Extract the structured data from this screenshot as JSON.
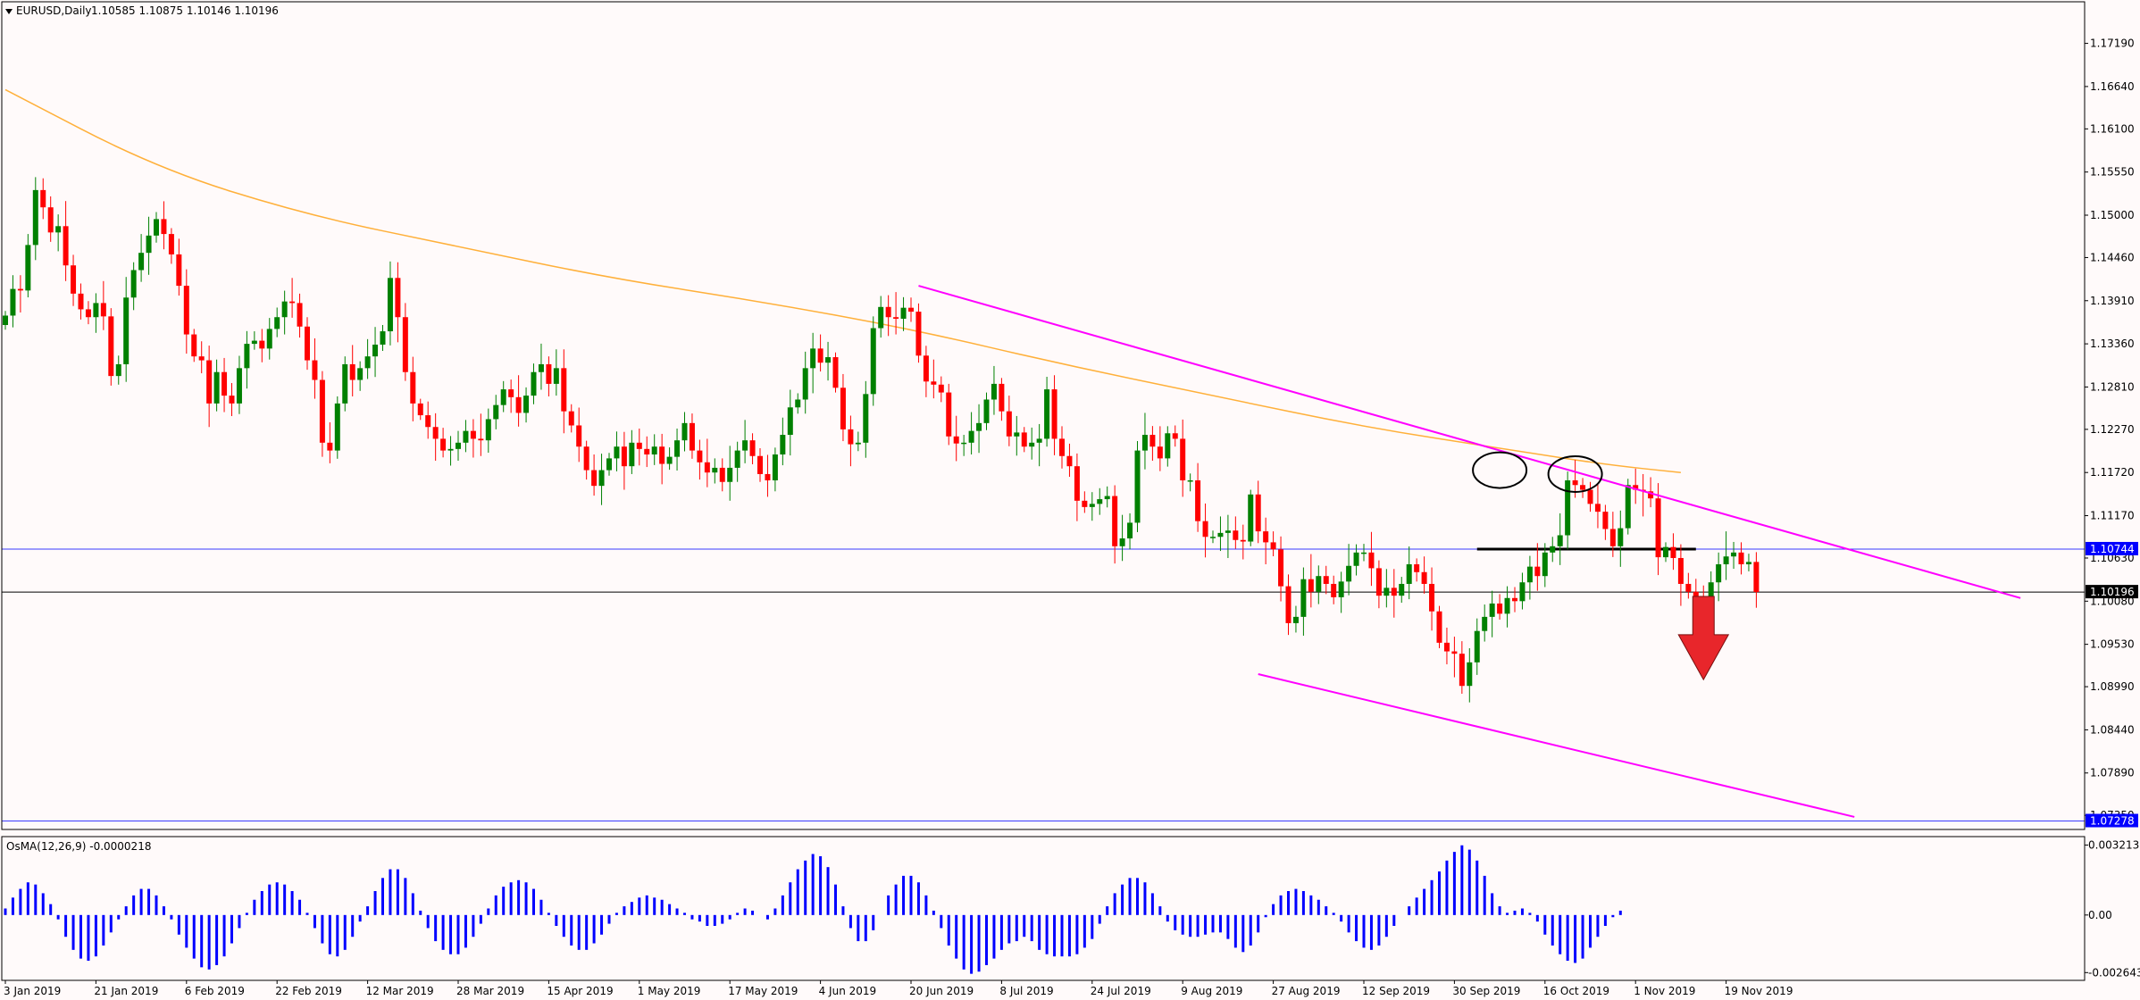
{
  "chart_data": {
    "type": "candlestick",
    "header": {
      "symbol_label": "EURUSD,Daily",
      "quote": "1.10585 1.10875 1.10146 1.10196"
    },
    "colors": {
      "background": "#fffafa",
      "bull": "#008000",
      "bear": "#ff0000",
      "ma": "#ffb03a",
      "trendline": "#ff00ff",
      "level_line": "#3a3aff",
      "osma": "#0000ff",
      "arrow": "#e8262b"
    },
    "price_axis": {
      "ylim": [
        1.0717,
        1.1772
      ],
      "ticks": [
        "1.17190",
        "1.16640",
        "1.16100",
        "1.15550",
        "1.15000",
        "1.14460",
        "1.13910",
        "1.13360",
        "1.12810",
        "1.12270",
        "1.11720",
        "1.11170",
        "1.10630",
        "1.10080",
        "1.09530",
        "1.08990",
        "1.08440",
        "1.07890",
        "1.07350"
      ],
      "markers": [
        {
          "label": "1.10744",
          "value": 1.10744,
          "bg": "#0000ff"
        },
        {
          "label": "1.10196",
          "value": 1.10196,
          "bg": "#000000"
        },
        {
          "label": "1.07278",
          "value": 1.07278,
          "bg": "#0000ff"
        }
      ]
    },
    "time_axis": {
      "labels": [
        {
          "text": "3 Jan 2019",
          "bar": 0
        },
        {
          "text": "21 Jan 2019",
          "bar": 12
        },
        {
          "text": "6 Feb 2019",
          "bar": 24
        },
        {
          "text": "22 Feb 2019",
          "bar": 36
        },
        {
          "text": "12 Mar 2019",
          "bar": 48
        },
        {
          "text": "28 Mar 2019",
          "bar": 60
        },
        {
          "text": "15 Apr 2019",
          "bar": 72
        },
        {
          "text": "1 May 2019",
          "bar": 84
        },
        {
          "text": "17 May 2019",
          "bar": 96
        },
        {
          "text": "4 Jun 2019",
          "bar": 108
        },
        {
          "text": "20 Jun 2019",
          "bar": 120
        },
        {
          "text": "8 Jul 2019",
          "bar": 132
        },
        {
          "text": "24 Jul 2019",
          "bar": 144
        },
        {
          "text": "9 Aug 2019",
          "bar": 156
        },
        {
          "text": "27 Aug 2019",
          "bar": 168
        },
        {
          "text": "12 Sep 2019",
          "bar": 180
        },
        {
          "text": "30 Sep 2019",
          "bar": 192
        },
        {
          "text": "16 Oct 2019",
          "bar": 204
        },
        {
          "text": "1 Nov 2019",
          "bar": 216
        },
        {
          "text": "19 Nov 2019",
          "bar": 228
        }
      ]
    },
    "closes": [
      1.1372,
      1.1406,
      1.1404,
      1.1462,
      1.1532,
      1.151,
      1.1478,
      1.1486,
      1.1436,
      1.14,
      1.138,
      1.137,
      1.1388,
      1.1371,
      1.1295,
      1.131,
      1.1395,
      1.143,
      1.1452,
      1.1474,
      1.1495,
      1.1476,
      1.145,
      1.141,
      1.1348,
      1.132,
      1.1315,
      1.126,
      1.13,
      1.127,
      1.126,
      1.1305,
      1.1336,
      1.134,
      1.133,
      1.1355,
      1.137,
      1.139,
      1.1388,
      1.1358,
      1.1315,
      1.129,
      1.121,
      1.12,
      1.126,
      1.131,
      1.129,
      1.1305,
      1.132,
      1.1335,
      1.1352,
      1.142,
      1.137,
      1.13,
      1.126,
      1.1245,
      1.123,
      1.1215,
      1.12,
      1.1202,
      1.121,
      1.1225,
      1.1215,
      1.1213,
      1.124,
      1.1258,
      1.1278,
      1.1268,
      1.1248,
      1.127,
      1.13,
      1.131,
      1.1285,
      1.1305,
      1.125,
      1.1232,
      1.1205,
      1.1175,
      1.1155,
      1.1175,
      1.119,
      1.1205,
      1.118,
      1.121,
      1.1202,
      1.1195,
      1.1205,
      1.1183,
      1.1192,
      1.1213,
      1.1235,
      1.12,
      1.1185,
      1.1172,
      1.1178,
      1.116,
      1.1178,
      1.12,
      1.1213,
      1.1193,
      1.117,
      1.1162,
      1.1195,
      1.122,
      1.1255,
      1.1265,
      1.1305,
      1.133,
      1.1312,
      1.1319,
      1.128,
      1.1227,
      1.1208,
      1.121,
      1.1272,
      1.1356,
      1.1383,
      1.137,
      1.1368,
      1.1382,
      1.1377,
      1.1321,
      1.1288,
      1.1284,
      1.1274,
      1.1218,
      1.1209,
      1.121,
      1.1225,
      1.1235,
      1.1265,
      1.1285,
      1.125,
      1.1218,
      1.1223,
      1.1205,
      1.121,
      1.1215,
      1.1278,
      1.1215,
      1.1193,
      1.118,
      1.1136,
      1.1128,
      1.1132,
      1.1138,
      1.1142,
      1.1078,
      1.1088,
      1.1108,
      1.12,
      1.122,
      1.1205,
      1.119,
      1.1222,
      1.1215,
      1.1162,
      1.1162,
      1.111,
      1.109,
      1.109,
      1.1095,
      1.1098,
      1.1086,
      1.1084,
      1.1144,
      1.1097,
      1.1083,
      1.1074,
      1.1027,
      1.098,
      1.0988,
      1.1036,
      1.102,
      1.104,
      1.103,
      1.1013,
      1.1033,
      1.1053,
      1.107,
      1.107,
      1.105,
      1.1015,
      1.1025,
      1.1015,
      1.103,
      1.1055,
      1.1045,
      1.103,
      1.0995,
      1.0955,
      1.0944,
      1.0941,
      1.09,
      1.093,
      1.097,
      1.0988,
      1.1005,
      1.0992,
      1.1012,
      1.1008,
      1.1032,
      1.1052,
      1.104,
      1.107,
      1.1078,
      1.1092,
      1.1162,
      1.1156,
      1.115,
      1.1132,
      1.1122,
      1.11,
      1.1078,
      1.1101,
      1.1156,
      1.115,
      1.1148,
      1.1139,
      1.1064,
      1.1077,
      1.1063,
      1.103,
      1.102,
      1.1013,
      1.1005,
      1.1032,
      1.1055,
      1.1065,
      1.107,
      1.1055,
      1.1058,
      1.10196
    ],
    "ma_label": "",
    "ma_points": [
      [
        0,
        1.166
      ],
      [
        20,
        1.156
      ],
      [
        40,
        1.15
      ],
      [
        60,
        1.146
      ],
      [
        80,
        1.142
      ],
      [
        100,
        1.139
      ],
      [
        120,
        1.1355
      ],
      [
        140,
        1.131
      ],
      [
        160,
        1.127
      ],
      [
        180,
        1.123
      ],
      [
        200,
        1.12
      ],
      [
        212,
        1.1182
      ],
      [
        222,
        1.1172
      ]
    ],
    "trendlines": [
      {
        "from": [
          121,
          1.141
        ],
        "to": [
          267,
          1.1012
        ]
      },
      {
        "from": [
          166,
          1.0915
        ],
        "to": [
          245,
          1.0733
        ]
      }
    ],
    "horizontal_lines": [
      {
        "value": 1.10744,
        "color": "#3a3aff",
        "width": 1
      },
      {
        "value": 1.10196,
        "color": "#000000",
        "width": 1
      },
      {
        "value": 1.07278,
        "color": "#3a3aff",
        "width": 1
      },
      {
        "value": 1.10744,
        "color": "#000000",
        "width": 3,
        "from_bar": 195,
        "to_bar": 224
      }
    ],
    "ellipses": [
      {
        "bar": 198,
        "value": 1.1175
      },
      {
        "bar": 208,
        "value": 1.117
      }
    ],
    "down_arrow": {
      "bar": 225,
      "top": 1.1014,
      "bottom": 1.0908
    },
    "indicator": {
      "label": "OsMA(12,26,9) -0.0000218",
      "ticks": [
        {
          "label": "0.0032136",
          "value": 0.0032136
        },
        {
          "label": "0.00",
          "value": 0
        },
        {
          "label": "-0.0026435",
          "value": -0.0026435
        }
      ],
      "ylim": [
        -0.003,
        0.0036
      ],
      "values": [
        0.0003,
        0.0008,
        0.0012,
        0.0015,
        0.0014,
        0.001,
        0.0005,
        -0.0002,
        -0.001,
        -0.0016,
        -0.002,
        -0.0021,
        -0.0019,
        -0.0014,
        -0.0008,
        -0.0002,
        0.0004,
        0.0009,
        0.0012,
        0.0012,
        0.0009,
        0.0004,
        -0.0002,
        -0.0009,
        -0.0015,
        -0.002,
        -0.0024,
        -0.0025,
        -0.0023,
        -0.0019,
        -0.0013,
        -0.0006,
        0.0001,
        0.0007,
        0.0011,
        0.0014,
        0.0015,
        0.0014,
        0.0011,
        0.0007,
        0.0001,
        -0.0006,
        -0.0013,
        -0.0018,
        -0.0019,
        -0.0016,
        -0.001,
        -0.0003,
        0.0004,
        0.0011,
        0.0017,
        0.0021,
        0.0021,
        0.0017,
        0.001,
        0.0002,
        -0.0006,
        -0.0012,
        -0.0016,
        -0.0018,
        -0.0018,
        -0.0015,
        -0.001,
        -0.0004,
        0.0003,
        0.0009,
        0.0013,
        0.0015,
        0.0016,
        0.0015,
        0.0012,
        0.0007,
        0.0001,
        -0.0005,
        -0.001,
        -0.0014,
        -0.0016,
        -0.0016,
        -0.0013,
        -0.0009,
        -0.0004,
        0.0001,
        0.0004,
        0.0006,
        0.0008,
        0.0009,
        0.0008,
        0.0007,
        0.0005,
        0.0003,
        0.0001,
        -0.0002,
        -0.0003,
        -0.0005,
        -0.0005,
        -0.0004,
        -0.0002,
        0.0001,
        0.0003,
        0.0002,
        0.0,
        -0.0002,
        0.0003,
        0.0009,
        0.0015,
        0.0021,
        0.0025,
        0.0028,
        0.0027,
        0.0022,
        0.0014,
        0.0004,
        -0.0006,
        -0.0012,
        -0.0012,
        -0.0007,
        0.0,
        0.0009,
        0.0014,
        0.0018,
        0.0018,
        0.0015,
        0.0009,
        0.0002,
        -0.0006,
        -0.0014,
        -0.002,
        -0.0025,
        -0.0027,
        -0.0026,
        -0.0023,
        -0.002,
        -0.0016,
        -0.0013,
        -0.0012,
        -0.001,
        -0.0012,
        -0.0016,
        -0.0018,
        -0.0019,
        -0.0019,
        -0.0019,
        -0.0018,
        -0.0015,
        -0.0011,
        -0.0004,
        0.0004,
        0.001,
        0.0014,
        0.0017,
        0.0017,
        0.0015,
        0.001,
        0.0004,
        -0.0003,
        -0.0007,
        -0.0009,
        -0.001,
        -0.001,
        -0.0009,
        -0.0008,
        -0.0008,
        -0.0011,
        -0.0015,
        -0.0017,
        -0.0014,
        -0.0008,
        -0.0001,
        0.0005,
        0.0009,
        0.0011,
        0.0012,
        0.0011,
        0.0009,
        0.0007,
        0.0004,
        0.0001,
        -0.0003,
        -0.0008,
        -0.0012,
        -0.0015,
        -0.0016,
        -0.0014,
        -0.001,
        -0.0005,
        0.0,
        0.0004,
        0.0008,
        0.0012,
        0.0016,
        0.002,
        0.0025,
        0.0029,
        0.0032,
        0.003,
        0.0025,
        0.0018,
        0.001,
        0.0004,
        0.0001,
        0.0002,
        0.0003,
        0.0001,
        -0.0003,
        -0.0009,
        -0.0014,
        -0.0018,
        -0.0021,
        -0.0022,
        -0.002,
        -0.0015,
        -0.001,
        -0.0005,
        -0.0001,
        0.0002,
        0.0
      ]
    }
  }
}
